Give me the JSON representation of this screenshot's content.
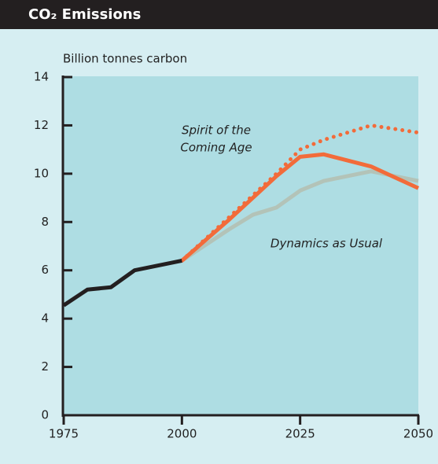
{
  "chart_data": {
    "type": "line",
    "title": "CO₂ Emissions",
    "y_axis_label": "Billion tonnes carbon",
    "xlim": [
      1975,
      2050
    ],
    "xticks": [
      1975,
      2000,
      2025,
      2050
    ],
    "ylim": [
      0,
      14
    ],
    "yticks": [
      0,
      2,
      4,
      6,
      8,
      10,
      12,
      14
    ],
    "annotations": [
      {
        "lines": [
          "Spirit of the",
          "Coming Age"
        ]
      },
      {
        "lines": [
          "Dynamics as Usual"
        ]
      }
    ],
    "series": [
      {
        "color": "#b3c3b8",
        "style": "solid",
        "x": [
          2000,
          2010,
          2015,
          2020,
          2025,
          2030,
          2040,
          2050
        ],
        "values": [
          6.4,
          7.7,
          8.3,
          8.6,
          9.3,
          9.7,
          10.1,
          9.7
        ]
      },
      {
        "color": "#f26b3a",
        "style": "dotted",
        "x": [
          2000,
          2010,
          2020,
          2025,
          2030,
          2040,
          2050
        ],
        "values": [
          6.4,
          8.2,
          10.0,
          11.0,
          11.4,
          12.0,
          11.7
        ]
      },
      {
        "color": "#f26b3a",
        "style": "solid",
        "x": [
          2000,
          2010,
          2020,
          2025,
          2030,
          2040,
          2050
        ],
        "values": [
          6.4,
          8.1,
          9.9,
          10.7,
          10.8,
          10.3,
          9.4
        ]
      },
      {
        "color": "#231f20",
        "style": "solid",
        "x": [
          1975,
          1980,
          1985,
          1990,
          2000
        ],
        "values": [
          4.55,
          5.2,
          5.3,
          6.0,
          6.4
        ]
      }
    ]
  }
}
